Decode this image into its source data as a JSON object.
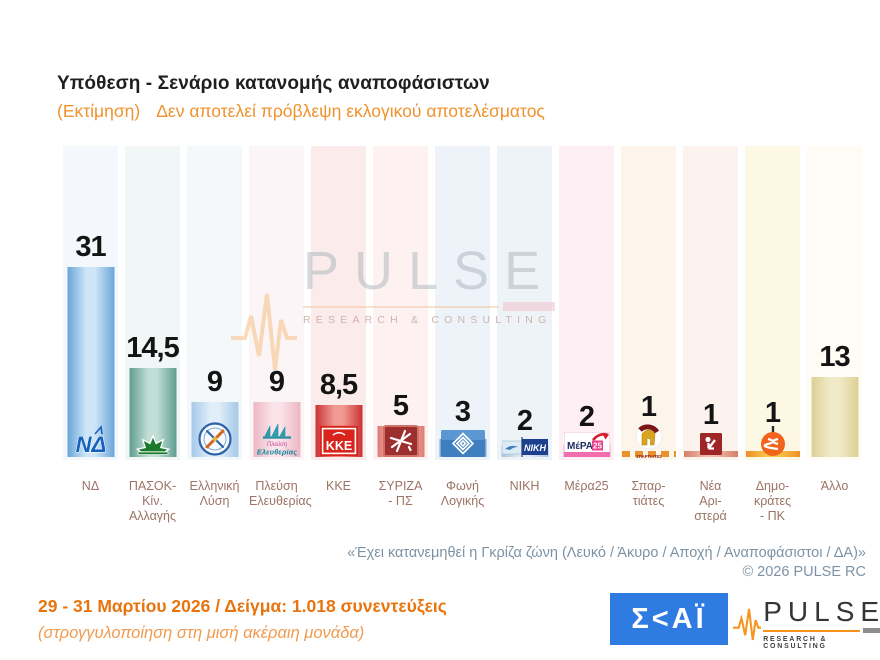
{
  "title": "Υπόθεση - Σενάριο κατανομής αναποφάσιστων",
  "subtitle_prefix": "(Εκτίμηση)",
  "subtitle_text": "Δεν αποτελεί πρόβλεψη εκλογικού αποτελέσματος",
  "footnote_note": "«Έχει κατανεμηθεί η Γκρίζα ζώνη (Λευκό / Άκυρο / Αποχή / Αναποφάσιστοι / ΔΑ)»",
  "footnote_copyright": "©  2026  PULSE RC",
  "sample_line": "29 - 31  Μαρτίου 2026  /  Δείγμα:  1.018 συνεντεύξεις",
  "rounding_note": "(στρογγυλοποίηση στη μισή ακέραιη μονάδα)",
  "watermark": {
    "word": "PULSE",
    "sub": "RESEARCH & CONSULTING"
  },
  "logos": {
    "skai_text": "Σ<ΑΪ",
    "pulse_word": "PULSE",
    "pulse_sub": "RESEARCH & CONSULTING"
  },
  "colors": {
    "accent_orange": "#f0922e",
    "note_blue": "#7d93a5",
    "label_brown": "#9c7365",
    "sample_orange": "#e8740e",
    "skai_blue": "#2e7ce2",
    "pulse_orange": "#f7941d",
    "value_black": "#141414"
  },
  "chart_data": {
    "type": "bar",
    "title": "Υπόθεση - Σενάριο κατανομής αναποφάσιστων (Εκτίμηση)",
    "unit": "%",
    "ylim": [
      0,
      35
    ],
    "grid": false,
    "legend": "none",
    "categories": [
      "ΝΔ",
      "ΠΑΣΟΚ-Κίν. Αλλαγής",
      "Ελληνική Λύση",
      "Πλεύση Ελευθερίας",
      "ΚΚΕ",
      "ΣΥΡΙΖΑ - ΠΣ",
      "Φωνή Λογικής",
      "ΝΙΚΗ",
      "Μέρα25",
      "Σπαρτιάτες",
      "Νέα Αριστερά",
      "Δημοκράτες - ΠΚ",
      "Άλλο"
    ],
    "values": [
      31,
      14.5,
      9,
      9,
      8.5,
      5,
      3,
      2,
      2,
      1,
      1,
      1,
      13
    ],
    "value_labels": [
      "31",
      "14,5",
      "9",
      "9",
      "8,5",
      "5",
      "3",
      "2",
      "2",
      "1",
      "1",
      "1",
      "13"
    ],
    "parties": [
      {
        "name": "ΝΔ",
        "label_lines": [
          "ΝΔ"
        ],
        "value": 31,
        "value_label": "31",
        "bar_edge": "#6aa5d8",
        "bar_light": "#cfe6f8",
        "strip": "#f4f8fc",
        "logo": "nd",
        "logo_text": {
          "main": "ΝΔ"
        }
      },
      {
        "name": "ΠΑΣΟΚ-Κίν. Αλλαγής",
        "label_lines": [
          "ΠΑΣΟΚ-Κίν.",
          "Αλλαγής"
        ],
        "value": 14.5,
        "value_label": "14,5",
        "bar_edge": "#5f9e90",
        "bar_light": "#c2ded6",
        "strip": "#f1f7f6",
        "logo": "pasok",
        "logo_text": {}
      },
      {
        "name": "Ελληνική Λύση",
        "label_lines": [
          "Ελληνική",
          "Λύση"
        ],
        "value": 9,
        "value_label": "9",
        "bar_edge": "#a6c8e8",
        "bar_light": "#e0eef9",
        "strip": "#f5f8fb",
        "logo": "elliniki",
        "logo_text": {}
      },
      {
        "name": "Πλεύση Ελευθερίας",
        "label_lines": [
          "Πλεύση",
          "Ελευθερίας"
        ],
        "value": 9,
        "value_label": "9",
        "bar_edge": "#ecb6c3",
        "bar_light": "#fae3e9",
        "strip": "#fcf5f7",
        "logo": "plefsi",
        "logo_text": {
          "line1": "Πλεύση",
          "line2": "Ελευθερίας"
        }
      },
      {
        "name": "ΚΚΕ",
        "label_lines": [
          "ΚΚΕ"
        ],
        "value": 8.5,
        "value_label": "8,5",
        "bar_edge": "#c93434",
        "bar_light": "#f19a94",
        "strip": "#fbeceb",
        "logo": "kke",
        "logo_text": {
          "main": "ΚΚΕ"
        }
      },
      {
        "name": "ΣΥΡΙΖΑ - ΠΣ",
        "label_lines": [
          "ΣΥΡΙΖΑ",
          "- ΠΣ"
        ],
        "value": 5,
        "value_label": "5",
        "bar_edge": "#dd7d74",
        "bar_light": "#f5bdb4",
        "strip": "#fdf2f1",
        "logo": "syriza",
        "logo_text": {}
      },
      {
        "name": "Φωνή Λογικής",
        "label_lines": [
          "Φωνή",
          "Λογικής"
        ],
        "value": 3,
        "value_label": "3",
        "bar_edge": "#7aa8d4",
        "bar_light": "#cadef2",
        "strip": "#edf3f9",
        "logo": "foni",
        "logo_text": {}
      },
      {
        "name": "ΝΙΚΗ",
        "label_lines": [
          "ΝΙΚΗ"
        ],
        "value": 2,
        "value_label": "2",
        "bar_edge": "#a9c3da",
        "bar_light": "#e0ecf5",
        "strip": "#eef3f7",
        "logo": "niki",
        "logo_text": {
          "main": "ΝΙΚΗ"
        }
      },
      {
        "name": "Μέρα25",
        "label_lines": [
          "Μέρα25"
        ],
        "value": 2,
        "value_label": "2",
        "bar_edge": "#eaa2be",
        "bar_light": "#f8d8e4",
        "strip": "#fdeff4",
        "logo": "mera25",
        "logo_text": {
          "main": "ΜέΡΑ",
          "num": "25"
        }
      },
      {
        "name": "Σπαρτιάτες",
        "label_lines": [
          "Σπαρ-",
          "τιάτες"
        ],
        "value": 1,
        "value_label": "1",
        "bar_edge": "#e8922c",
        "bar_light": "#f6c077",
        "strip": "#fdf5ea",
        "logo": "spartiates",
        "logo_text": {
          "main": "ΣΠΑΡΤΙΑΤΕΣ"
        },
        "dashed": true
      },
      {
        "name": "Νέα Αριστερά",
        "label_lines": [
          "Νέα",
          "Αρι-",
          "στερά"
        ],
        "value": 1,
        "value_label": "1",
        "bar_edge": "#d77f68",
        "bar_light": "#eebcab",
        "strip": "#fcf3ee",
        "logo": "nea",
        "logo_text": {}
      },
      {
        "name": "Δημοκράτες - ΠΚ",
        "label_lines": [
          "Δημο-",
          "κράτες",
          "- ΠΚ"
        ],
        "value": 1,
        "value_label": "1",
        "bar_edge": "#ef8f25",
        "bar_light": "#f7c84e",
        "strip": "#fdf8e4",
        "logo": "dimokrates",
        "logo_text": {}
      },
      {
        "name": "Άλλο",
        "label_lines": [
          "Άλλο"
        ],
        "value": 13,
        "value_label": "13",
        "bar_edge": "#ddd096",
        "bar_light": "#f1eac8",
        "strip": "#fefcf5",
        "logo": null,
        "logo_text": {}
      }
    ]
  }
}
